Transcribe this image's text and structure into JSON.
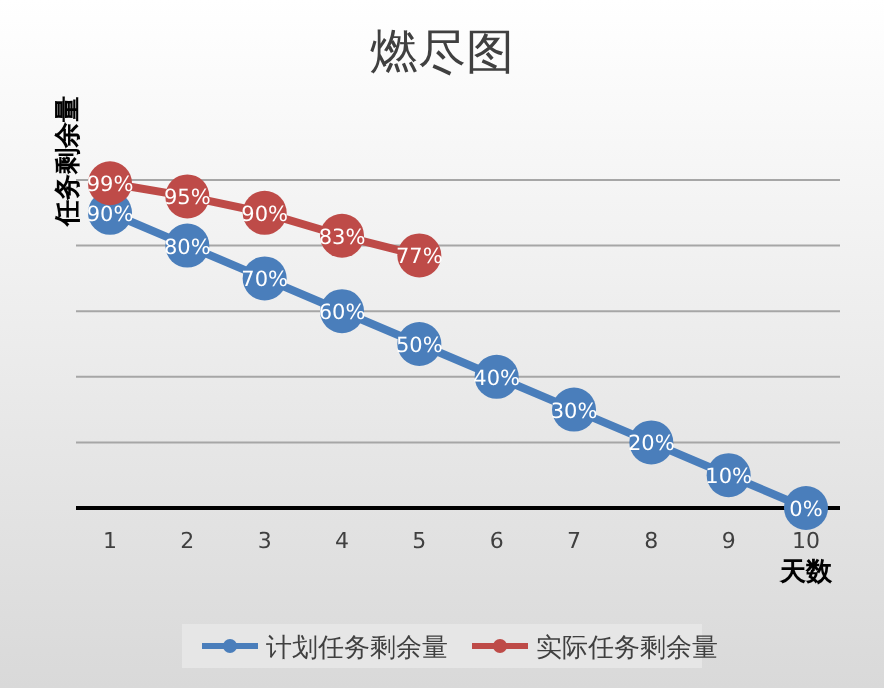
{
  "chart_data": {
    "type": "line",
    "title": "燃尽图",
    "xlabel": "天数",
    "ylabel": "任务剩余量",
    "categories": [
      "1",
      "2",
      "3",
      "4",
      "5",
      "6",
      "7",
      "8",
      "9",
      "10"
    ],
    "series": [
      {
        "name": "计划任务剩余量",
        "color": "#4a7ebb",
        "values": [
          90,
          80,
          70,
          60,
          50,
          40,
          30,
          20,
          10,
          0
        ],
        "value_labels": [
          "90%",
          "80%",
          "70%",
          "60%",
          "50%",
          "40%",
          "30%",
          "20%",
          "10%",
          "0%"
        ]
      },
      {
        "name": "实际任务剩余量",
        "color": "#be4b48",
        "values": [
          99,
          95,
          90,
          83,
          77,
          null,
          null,
          null,
          null,
          null
        ],
        "value_labels": [
          "99%",
          "95%",
          "90%",
          "83%",
          "77%",
          null,
          null,
          null,
          null,
          null
        ]
      }
    ],
    "ylim": [
      0,
      100
    ],
    "yticks": [
      {
        "value": 0,
        "label": null
      },
      {
        "value": 20,
        "label": null
      },
      {
        "value": 40,
        "label": null
      },
      {
        "value": 60,
        "label": null
      },
      {
        "value": 80,
        "label": null
      },
      {
        "value": 100,
        "label": null
      }
    ],
    "grid": "y",
    "tick_labels": "x",
    "legend": "bottom",
    "marker": "circle",
    "line_style": "solid"
  }
}
